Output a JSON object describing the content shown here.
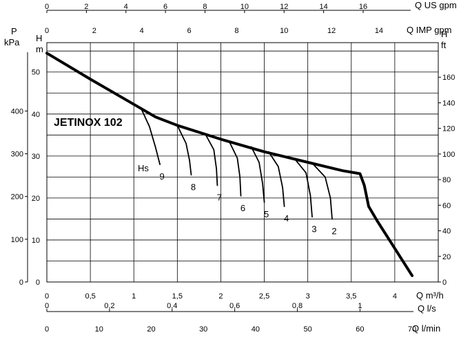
{
  "chart_data": {
    "type": "line",
    "title": "JETINOX 102",
    "axes": {
      "bottom_q_m3h": {
        "label": "Q m³/h",
        "ticks": [
          "0",
          "0,5",
          "1",
          "1,5",
          "2",
          "2,5",
          "3",
          "3,5",
          "4"
        ],
        "range": [
          0,
          4.5
        ]
      },
      "bottom_q_ls": {
        "label": "Q l/s",
        "ticks": [
          "0",
          "0,2",
          "0,4",
          "0,6",
          "0,8",
          "1"
        ],
        "range": [
          0,
          1.25
        ]
      },
      "bottom_q_lmin": {
        "label": "Q l/min",
        "ticks": [
          "0",
          "10",
          "20",
          "30",
          "40",
          "50",
          "60",
          "70"
        ],
        "range": [
          0,
          75
        ]
      },
      "top_q_us_gpm": {
        "label": "Q US gpm",
        "ticks": [
          "0",
          "2",
          "4",
          "6",
          "8",
          "10",
          "12",
          "14",
          "16"
        ],
        "range": [
          0,
          19.8
        ]
      },
      "top_q_imp_gpm": {
        "label": "Q IMP gpm",
        "ticks": [
          "0",
          "2",
          "4",
          "6",
          "8",
          "10",
          "12",
          "14"
        ],
        "range": [
          0,
          16.5
        ]
      },
      "left_h_m": {
        "label": "H m",
        "ticks": [
          "0",
          "10",
          "20",
          "30",
          "40",
          "50"
        ],
        "range": [
          0,
          57
        ]
      },
      "left_p_kpa": {
        "label": "P kPa",
        "ticks": [
          "0",
          "100",
          "200",
          "300",
          "400"
        ],
        "range": [
          0,
          560
        ]
      },
      "right_h_ft": {
        "label": "H ft",
        "ticks": [
          "0",
          "20",
          "40",
          "60",
          "80",
          "100",
          "120",
          "140",
          "160"
        ],
        "range": [
          0,
          187
        ]
      }
    },
    "grid": true,
    "series": [
      {
        "name": "JETINOX 102",
        "x": [
          0,
          0.5,
          1,
          1.25,
          1.5,
          2,
          2.5,
          3,
          3.4,
          3.6,
          3.65,
          3.7,
          3.8,
          4,
          4.2
        ],
        "y": [
          54.5,
          48.3,
          42.3,
          39.3,
          37.3,
          34,
          31,
          28.5,
          26.5,
          25.8,
          23,
          18,
          14.5,
          8,
          1.5
        ]
      }
    ],
    "suction_curves": {
      "prefix_label": "Hs",
      "curves": [
        {
          "name": "9",
          "x": [
            1.08,
            1.18,
            1.25,
            1.3
          ],
          "y": [
            41.5,
            37,
            32,
            28
          ]
        },
        {
          "name": "8",
          "x": [
            1.5,
            1.6,
            1.64,
            1.66
          ],
          "y": [
            37.3,
            33,
            29,
            25.5
          ]
        },
        {
          "name": "7",
          "x": [
            1.82,
            1.92,
            1.95,
            1.96
          ],
          "y": [
            35.3,
            31.5,
            27,
            23
          ]
        },
        {
          "name": "6",
          "x": [
            2.1,
            2.19,
            2.22,
            2.23
          ],
          "y": [
            33.3,
            29.5,
            25,
            20.5
          ]
        },
        {
          "name": "5",
          "x": [
            2.35,
            2.44,
            2.48,
            2.5
          ],
          "y": [
            32.2,
            28.5,
            23.5,
            19
          ]
        },
        {
          "name": "4",
          "x": [
            2.55,
            2.66,
            2.71,
            2.73
          ],
          "y": [
            31,
            27.5,
            22.5,
            18
          ]
        },
        {
          "name": "3",
          "x": [
            2.85,
            2.98,
            3.03,
            3.05
          ],
          "y": [
            29.3,
            26,
            20.5,
            15.5
          ]
        },
        {
          "name": "2",
          "x": [
            3.05,
            3.2,
            3.26,
            3.28
          ],
          "y": [
            28.3,
            25,
            20,
            15
          ]
        }
      ]
    }
  }
}
